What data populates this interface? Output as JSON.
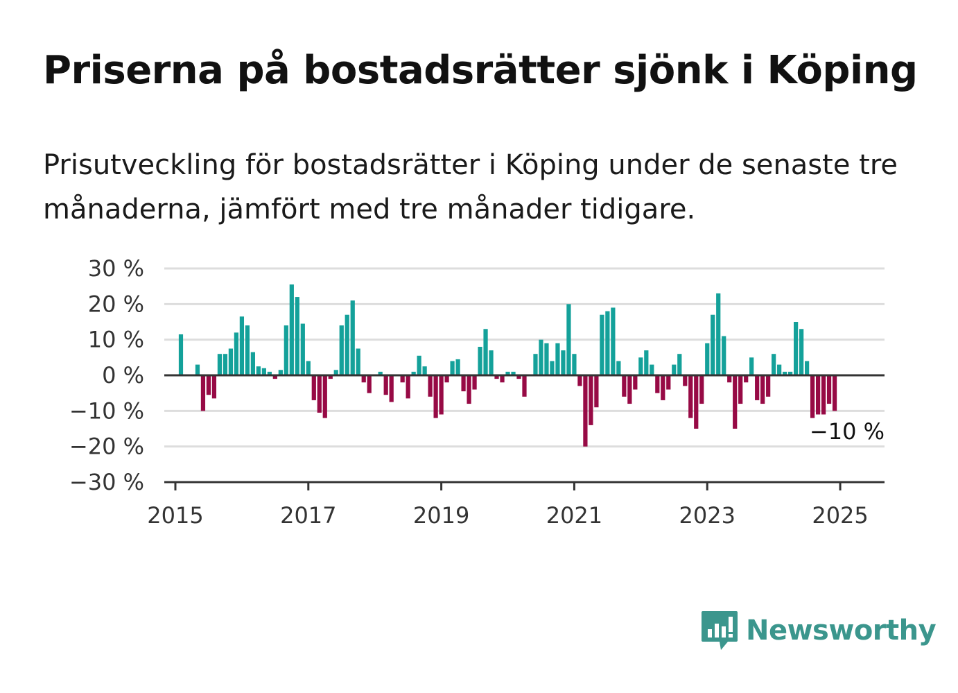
{
  "header": {
    "title": "Priserna på bostadsrätter sjönk i Köping",
    "subtitle": "Prisutveckling för bostadsrätter i Köping under de senaste tre månaderna, jämfört med tre månader tidigare."
  },
  "brand": {
    "name": "Newsworthy",
    "color": "#3b968d",
    "icon": "newsworthy-logo-icon"
  },
  "colors": {
    "positive": "#14a19a",
    "negative": "#970a45",
    "grid": "#dddddd",
    "zero_line": "#333333"
  },
  "chart_data": {
    "type": "bar",
    "title": "",
    "xlabel": "",
    "ylabel": "",
    "ylim": [
      -30,
      30
    ],
    "y_ticks": [
      30,
      20,
      10,
      0,
      -10,
      -20,
      -30
    ],
    "y_tick_labels": [
      "30 %",
      "20 %",
      "10 %",
      "0 %",
      "−10 %",
      "−20 %",
      "−30 %"
    ],
    "x_ticks": [
      "2015",
      "2017",
      "2019",
      "2021",
      "2023",
      "2025"
    ],
    "x_range": [
      "2014-11",
      "2025-09"
    ],
    "grid": true,
    "last_value_label": "−10 %",
    "series": [
      {
        "start": "2015-01",
        "frequency": "monthly",
        "values": [
          0,
          11.5,
          0,
          0,
          3,
          -10,
          -5.5,
          -6.5,
          6,
          6,
          7.5,
          12,
          16.5,
          14,
          6.5,
          2.5,
          2,
          1,
          -1,
          1.5,
          14,
          25.5,
          22,
          14.5,
          4,
          -7,
          -10.5,
          -12,
          -1,
          1.5,
          14,
          17,
          21,
          7.5,
          -2,
          -5,
          0,
          1,
          -5.5,
          -7.5,
          0,
          -2,
          -6.5,
          1,
          5.5,
          2.5,
          -6,
          -12,
          -11,
          -2,
          4,
          4.5,
          -4.5,
          -8,
          -4,
          8,
          13,
          7,
          -1,
          -2,
          1,
          1,
          -1,
          -6,
          0,
          6,
          10,
          9,
          4,
          9,
          7,
          20,
          6,
          -3,
          -20,
          -14,
          -9,
          17,
          18,
          19,
          4,
          -6,
          -8,
          -4,
          5,
          7,
          3,
          -5,
          -7,
          -4,
          3,
          6,
          -3,
          -12,
          -15,
          -8,
          9,
          17,
          23,
          11,
          -2,
          -15,
          -8,
          -2,
          5,
          -7,
          -8,
          -6,
          6,
          3,
          1,
          1,
          15,
          13,
          4,
          -12,
          -11,
          -11,
          -8,
          -10
        ]
      }
    ]
  }
}
